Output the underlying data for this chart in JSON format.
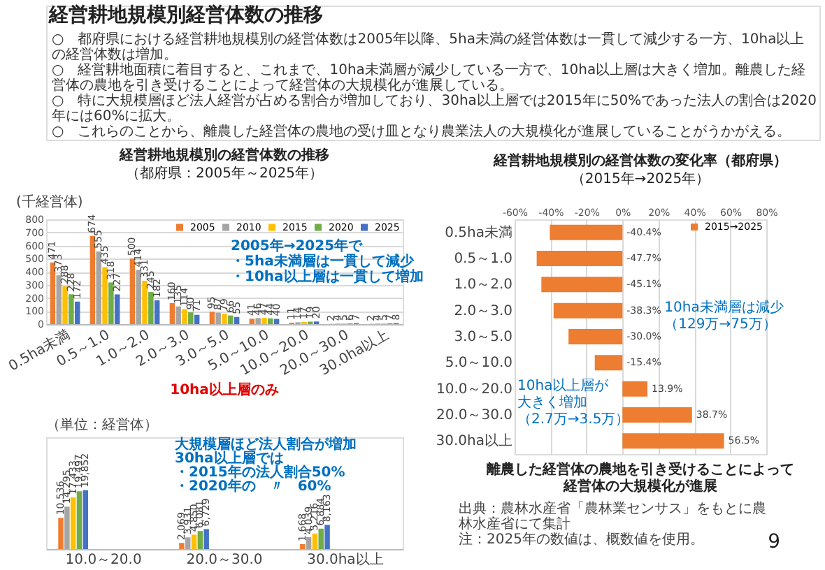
{
  "chart_data": [
    {
      "type": "other",
      "title": "経営耕地規模別経営体数の推移",
      "annotations": [
        "○　都府県における経営耕地規模別の経営体数は2005年以降、5ha未満の経営体数は一貫して減少する一方、10ha以上の経営体数は増加。",
        "○　経営耕地面積に着目すると、これまで、10ha未満層が減少している一方で、10ha以上層は大きく増加。離農した経営体の農地を引き受けることによって経営体の大規模化が進展している。",
        "○　特に大規模層ほど法人経営が占める割合が増加しており、30ha以上層では2015年に50%であった法人の割合は2020年には60%に拡大。",
        "○　これらのことから、離農した経営体の農地の受け皿となり農業法人の大規模化が進展していることがうかがえる。"
      ]
    },
    {
      "type": "bar",
      "title": "経営耕地規模別の経営体数の推移",
      "subtitle": "（都府県：2005年～2025年）",
      "ylabel": "(千経営体)",
      "categories": [
        "0.5ha未満",
        "0.5～1.0",
        "1.0～2.0",
        "2.0～3.0",
        "3.0～5.0",
        "5.0～10.0",
        "10.0～20.0",
        "20.0～30.0",
        "30.0ha以上"
      ],
      "series": [
        {
          "name": "2005",
          "color": "#ed7d31",
          "values": [
            471,
            674,
            500,
            160,
            95,
            41,
            11,
            2,
            2
          ]
        },
        {
          "name": "2010",
          "color": "#a5a5a5",
          "values": [
            373,
            555,
            414,
            135,
            87,
            46,
            14,
            4,
            4
          ]
        },
        {
          "name": "2015",
          "color": "#ffc000",
          "values": [
            288,
            435,
            331,
            114,
            79,
            47,
            17,
            5,
            5
          ]
        },
        {
          "name": "2020",
          "color": "#70ad47",
          "values": [
            228,
            318,
            245,
            90,
            66,
            44,
            19,
            6,
            7
          ]
        },
        {
          "name": "2025",
          "color": "#4472c4",
          "values": [
            172,
            227,
            182,
            71,
            55,
            40,
            20,
            7,
            8
          ]
        }
      ],
      "ylim": [
        0,
        800
      ],
      "yticks": [
        0,
        100,
        200,
        300,
        400,
        500,
        600,
        700,
        800
      ],
      "grid": "y",
      "legend": "top right",
      "data_labels": true,
      "annotations": [
        "2005年→2025年で",
        "・5ha未満層は一貫して減少",
        "・10ha以上層は一貫して増加"
      ]
    },
    {
      "type": "bar",
      "title": "10ha以上層のみ",
      "categories": [
        "10.0～20.0",
        "20.0～30.0",
        "30.0ha以上"
      ],
      "tick_labels": "x",
      "series": [
        {
          "color": "#ed7d31",
          "values": [
            10536,
            2069,
            1668
          ],
          "value_labels": [
            "10,536",
            "2,069",
            "1,668"
          ]
        },
        {
          "color": "#a5a5a5",
          "values": [
            14295,
            3931,
            4039
          ],
          "value_labels": [
            "14,295",
            "3,931",
            "4,039"
          ]
        },
        {
          "color": "#ffc000",
          "values": [
            17433,
            4850,
            5216
          ],
          "value_labels": [
            "17,433",
            "4,850",
            "5,216"
          ]
        },
        {
          "color": "#70ad47",
          "values": [
            19497,
            6081,
            6884
          ],
          "value_labels": [
            "19,497",
            "6,081",
            "6,884"
          ]
        },
        {
          "color": "#4472c4",
          "values": [
            19852,
            6729,
            8163
          ],
          "value_labels": [
            "19,852",
            "6,729",
            "8,163"
          ]
        }
      ],
      "annotations": [
        "（単位：経営体）",
        "大規模層ほど法人割合が増加",
        "30ha以上層では",
        "・2015年の法人割合50%",
        "・2020年の　〃　60%"
      ]
    },
    {
      "type": "bar",
      "orientation": "horizontal",
      "title": "経営耕地規模別の経営体数の変化率（都府県）",
      "subtitle": "（2015年→2025年）",
      "categories": [
        "0.5ha未満",
        "0.5～1.0",
        "1.0～2.0",
        "2.0～3.0",
        "3.0～5.0",
        "5.0～10.0",
        "10.0～20.0",
        "20.0～30.0",
        "30.0ha以上"
      ],
      "series": [
        {
          "name": "2015→2025",
          "color": "#ed7d31",
          "values": [
            -40.4,
            -47.7,
            -45.1,
            -38.3,
            -30.0,
            -15.4,
            13.9,
            38.7,
            56.5
          ],
          "value_labels": [
            "-40.4%",
            "-47.7%",
            "-45.1%",
            "-38.3%",
            "-30.0%",
            "-15.4%",
            "13.9%",
            "38.7%",
            "56.5%"
          ]
        }
      ],
      "xlim": [
        -60,
        80
      ],
      "xticks": [
        {
          "value": -60,
          "label": "-60%"
        },
        {
          "value": -40,
          "label": "-40%"
        },
        {
          "value": -20,
          "label": "-20%"
        },
        {
          "value": 0,
          "label": "0%"
        },
        {
          "value": 20,
          "label": "20%"
        },
        {
          "value": 40,
          "label": "40%"
        },
        {
          "value": 60,
          "label": "60%"
        },
        {
          "value": 80,
          "label": "80%"
        }
      ],
      "grid": "x",
      "legend": "top right",
      "annotations": [
        "10ha未満層は減少",
        "（129万→75万）",
        "10ha以上層が",
        "大きく増加",
        "（2.7万→3.5万）",
        "離農した経営体の農地を引き受けることによって",
        "経営体の大規模化が進展",
        "出典：農林水産省「農林業センサス」をもとに農林水産省にて集計",
        "注：2025年の数値は、概数値を使用。",
        "9"
      ]
    }
  ]
}
